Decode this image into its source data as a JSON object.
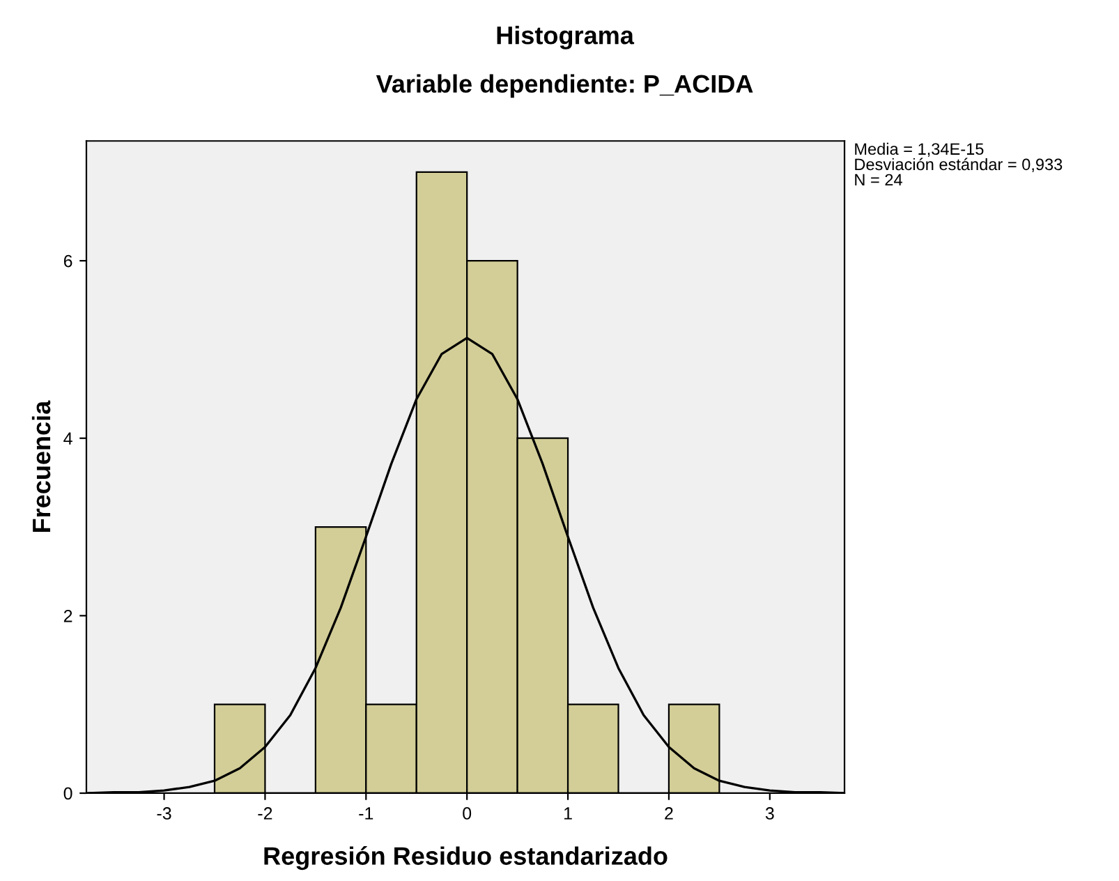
{
  "chart_data": {
    "type": "histogram",
    "title": "Histograma",
    "subtitle": "Variable dependiente: P_ACIDA",
    "xlabel": "Regresión Residuo estandarizado",
    "ylabel": "Frecuencia",
    "bins": [
      -2.5,
      -2.0,
      -1.5,
      -1.0,
      -0.5,
      0.0,
      0.5,
      1.0,
      1.5,
      2.0,
      2.5
    ],
    "values": [
      1,
      0,
      3,
      1,
      7,
      6,
      4,
      1,
      0,
      1
    ],
    "color": "#d3ce97",
    "series": [
      {
        "type": "line",
        "color": "#000000",
        "x": [
          -3.75,
          -3.5,
          -3.25,
          -3.0,
          -2.75,
          -2.5,
          -2.25,
          -2.0,
          -1.75,
          -1.5,
          -1.25,
          -1.0,
          -0.75,
          -0.5,
          -0.25,
          0.0,
          0.25,
          0.5,
          0.75,
          1.0,
          1.25,
          1.5,
          1.75,
          2.0,
          2.25,
          2.5,
          2.75,
          3.0,
          3.25,
          3.5,
          3.74
        ],
        "values": [
          0.0,
          0.01,
          0.01,
          0.03,
          0.07,
          0.14,
          0.28,
          0.52,
          0.88,
          1.41,
          2.09,
          2.89,
          3.71,
          4.44,
          4.95,
          5.13,
          4.95,
          4.44,
          3.71,
          2.89,
          2.09,
          1.41,
          0.88,
          0.52,
          0.28,
          0.14,
          0.07,
          0.03,
          0.01,
          0.01,
          0.0
        ]
      }
    ],
    "xlim": [
      -3.77,
      3.74
    ],
    "ylim": [
      0,
      7.35
    ],
    "xticks": [
      -3,
      -2,
      -1,
      0,
      1,
      2,
      3
    ],
    "yticks": [
      0,
      2,
      4,
      6
    ],
    "grid": false,
    "annotations": [
      "Media = 1,34E-15",
      "Desviación estándar = 0,933",
      "N = 24"
    ]
  }
}
